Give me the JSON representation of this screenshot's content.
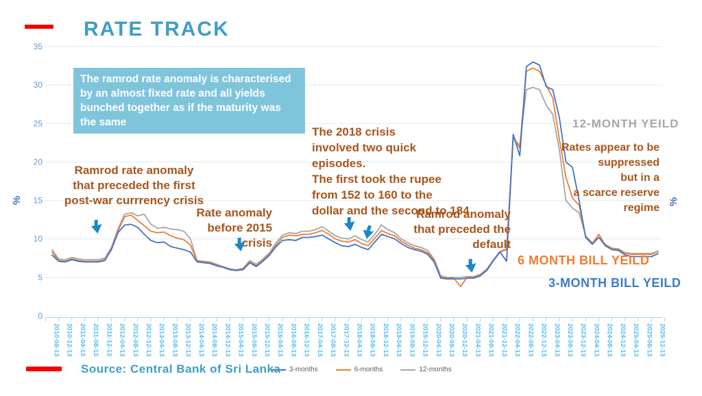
{
  "header": {
    "title": "RATE TRACK"
  },
  "source": {
    "label": "Source: Central Bank of Sri Lanka"
  },
  "annotations": {
    "ramrod_box": "The ramrod rate anomaly is characterised\nby an almost fixed rate and all yields\nbunched together as if the maturity was\nthe same",
    "ramrod_first": "Ramrod rate anomaly\nthat preceded the first\npost-war currrency crisis",
    "rate_2015": "Rate anomaly\nbefore 2015\ncrisis",
    "crisis_2018": "The 2018 crisis\ninvolved two quick episodes.\nThe first took the rupee\nfrom 152 to 160 to the\ndollar and the second to 184",
    "ramrod_default": "Ramrod anomaly\nthat preceded the\ndefault",
    "yield_12": "12-MONTH YEILD",
    "suppressed": "Rates appear to be\nsuppressed\nbut in a\na scarce reserve\nregime",
    "yield_6": "6 MONTH BILL YEILD",
    "yield_3": "3-MONTH BILL YEILD",
    "y_axis_left": "%",
    "y_axis_right": "%"
  },
  "legend": [
    {
      "label": "3-months",
      "color": "#4472c4"
    },
    {
      "label": "6-months",
      "color": "#ed7d31"
    },
    {
      "label": "12-months",
      "color": "#a6a6a6"
    }
  ],
  "colors": {
    "title": "#3e9ec6",
    "box_bg": "#7ec5dc",
    "annotation_brown": "#a8551c",
    "arrow_blue": "#1b87c9",
    "red_bar": "#f40000",
    "gridline": "#dcebf7",
    "axis": "#a9d6f0",
    "x_label": "#53bdf0",
    "y_label": "#5b9bd5",
    "series_3m": "#4472c4",
    "series_6m": "#ed7d31",
    "series_12m": "#a6a6a6"
  },
  "chart_data": {
    "type": "line",
    "title": "RATE TRACK",
    "ylabel": "%",
    "ylim": [
      0,
      35
    ],
    "y_ticks": [
      0,
      5,
      10,
      15,
      20,
      25,
      30,
      35
    ],
    "grid": true,
    "legend_position": "bottom",
    "x_tick_labels": [
      "2010-08-13",
      "2010-12-13",
      "2011-04-13",
      "2011-08-13",
      "2011-12-13",
      "2012-04-13",
      "2012-08-13",
      "2012-12-13",
      "2013-04-13",
      "2013-08-13",
      "2013-12-13",
      "2014-04-13",
      "2014-08-13",
      "2014-12-13",
      "2015-04-13",
      "2015-08-13",
      "2015-12-13",
      "2016-04-13",
      "2016-08-13",
      "2016-12-13",
      "2017-04-13",
      "2017-08-13",
      "2017-12-13",
      "2018-04-13",
      "2018-08-13",
      "2018-12-13",
      "2019-04-13",
      "2019-08-13",
      "2019-12-13",
      "2020-04-13",
      "2020-08-13",
      "2020-12-13",
      "2021-04-13",
      "2021-08-13",
      "2021-12-13",
      "2022-04-13",
      "2022-08-13",
      "2022-12-13",
      "2023-04-13",
      "2023-08-13",
      "2023-12-13",
      "2024-04-13",
      "2024-08-13",
      "2024-12-13",
      "2025-04-13",
      "2025-08-13",
      "2025-12-13"
    ],
    "sampling": "values are evenly spaced from first to last x tick (2-month steps)",
    "series": [
      {
        "name": "3-months",
        "color": "#4472c4",
        "values": [
          7.9,
          7.1,
          7.0,
          7.3,
          7.1,
          7.0,
          7.0,
          7.0,
          7.2,
          8.6,
          10.8,
          11.8,
          11.9,
          11.5,
          10.6,
          9.8,
          9.5,
          9.6,
          9.0,
          8.8,
          8.6,
          8.3,
          7.0,
          6.9,
          6.8,
          6.5,
          6.3,
          6.0,
          5.9,
          6.0,
          6.9,
          6.4,
          7.1,
          7.9,
          9.0,
          9.8,
          9.9,
          9.8,
          10.2,
          10.2,
          10.3,
          10.5,
          10.0,
          9.5,
          9.1,
          9.0,
          9.3,
          8.9,
          8.6,
          9.6,
          10.6,
          10.3,
          10.0,
          9.4,
          8.9,
          8.6,
          8.4,
          8.0,
          7.0,
          4.9,
          4.8,
          4.8,
          4.8,
          4.9,
          4.9,
          5.2,
          5.9,
          7.2,
          8.3,
          7.1,
          23.6,
          20.8,
          32.4,
          33.0,
          32.6,
          29.8,
          29.4,
          25.8,
          20.0,
          19.3,
          15.0,
          10.2,
          9.3,
          10.2,
          9.1,
          8.6,
          8.5,
          7.9,
          7.7,
          7.7,
          7.7,
          7.7,
          8.1
        ]
      },
      {
        "name": "6-months",
        "color": "#ed7d31",
        "values": [
          8.3,
          7.2,
          7.1,
          7.4,
          7.2,
          7.1,
          7.1,
          7.1,
          7.3,
          8.7,
          11.0,
          12.9,
          13.1,
          12.4,
          11.7,
          11.0,
          10.8,
          10.9,
          10.4,
          10.1,
          9.9,
          9.2,
          7.1,
          7.0,
          6.9,
          6.6,
          6.3,
          6.0,
          5.9,
          6.1,
          7.0,
          6.5,
          7.2,
          8.0,
          9.2,
          10.2,
          10.5,
          10.4,
          10.6,
          10.6,
          10.8,
          11.1,
          10.6,
          10.0,
          9.7,
          9.6,
          9.9,
          9.4,
          9.1,
          10.1,
          11.1,
          10.7,
          10.4,
          9.7,
          9.2,
          8.8,
          8.6,
          8.2,
          7.2,
          5.0,
          4.9,
          4.9,
          3.8,
          5.0,
          5.0,
          5.3,
          6.0,
          7.2,
          8.3,
          8.6,
          23.3,
          21.8,
          31.8,
          32.2,
          31.8,
          30.0,
          28.3,
          23.0,
          18.0,
          15.3,
          14.4,
          10.3,
          9.4,
          10.6,
          9.2,
          8.7,
          8.6,
          8.1,
          8.0,
          8.0,
          8.0,
          8.0,
          8.4
        ]
      },
      {
        "name": "12-months",
        "color": "#a6a6a6",
        "values": [
          8.6,
          7.4,
          7.3,
          7.6,
          7.4,
          7.3,
          7.3,
          7.3,
          7.5,
          8.9,
          11.3,
          13.2,
          13.4,
          13.0,
          13.2,
          11.9,
          11.4,
          11.5,
          11.3,
          11.2,
          11.0,
          10.0,
          7.2,
          7.1,
          7.0,
          6.7,
          6.4,
          6.1,
          6.0,
          6.2,
          7.2,
          6.7,
          7.4,
          8.2,
          9.5,
          10.5,
          10.8,
          10.7,
          11.0,
          11.0,
          11.2,
          11.6,
          11.0,
          10.4,
          10.1,
          10.0,
          10.4,
          9.9,
          9.6,
          10.6,
          11.8,
          11.2,
          10.8,
          10.0,
          9.5,
          9.1,
          8.9,
          8.5,
          7.4,
          5.2,
          5.0,
          5.0,
          5.0,
          5.1,
          5.1,
          5.4,
          6.1,
          7.3,
          8.4,
          8.7,
          23.0,
          22.2,
          29.4,
          29.7,
          29.4,
          27.4,
          26.2,
          21.6,
          15.0,
          14.0,
          13.4,
          10.4,
          9.5,
          10.2,
          9.3,
          8.8,
          8.7,
          8.2,
          8.1,
          8.1,
          8.1,
          8.1,
          8.4
        ]
      }
    ]
  }
}
